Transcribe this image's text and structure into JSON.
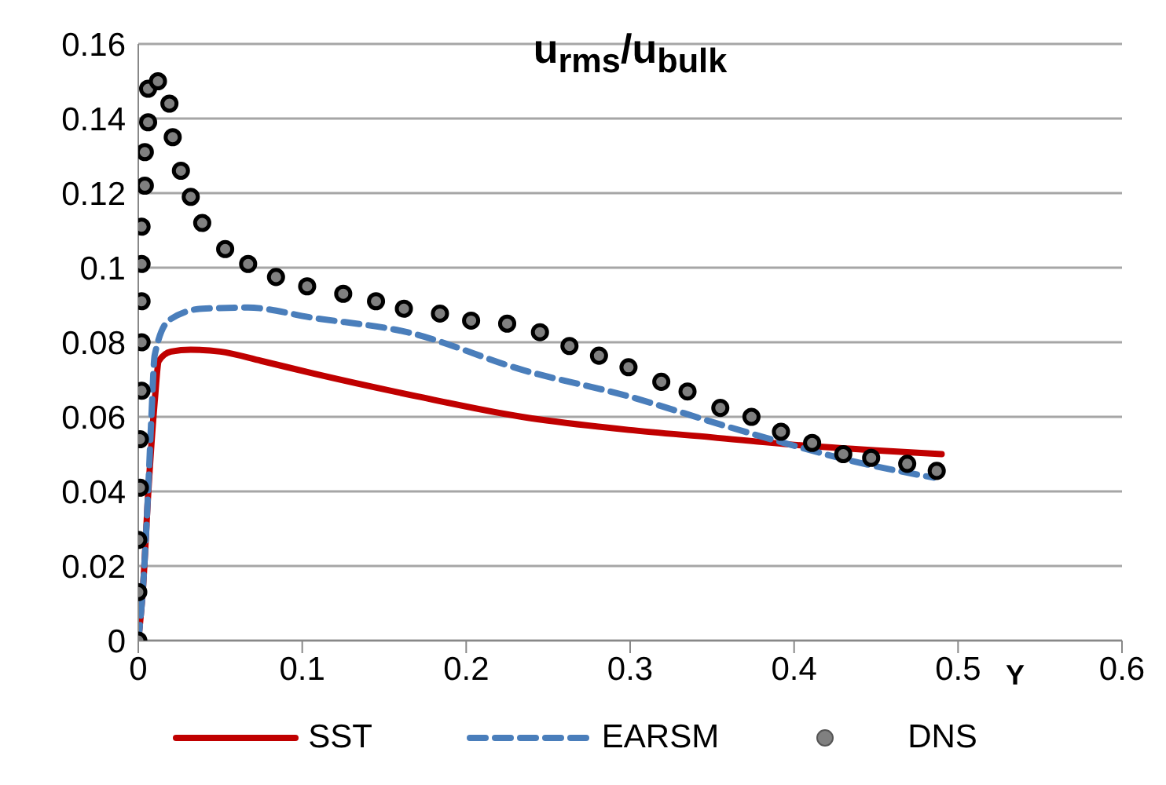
{
  "chart_data": {
    "type": "line",
    "title": "u$_{rms}$/u$_{bulk}$",
    "xlabel": "Y",
    "xlim": [
      0,
      0.6
    ],
    "xticks": [
      0,
      0.1,
      0.2,
      0.3,
      0.4,
      0.5,
      0.6
    ],
    "ylim": [
      0,
      0.16
    ],
    "yticks": [
      0,
      0.02,
      0.04,
      0.06,
      0.08,
      0.1,
      0.12,
      0.14,
      0.16
    ],
    "grid": "y",
    "legend": "bottom",
    "series": [
      {
        "name": "SST",
        "color": "#c00000",
        "line_style": "solid",
        "marker": "none",
        "x": [
          0,
          0.003,
          0.006,
          0.01,
          0.0125,
          0.02,
          0.032,
          0.05,
          0.075,
          0.106,
          0.17,
          0.234,
          0.299,
          0.35,
          0.4,
          0.45,
          0.49
        ],
        "values": [
          0,
          0.015,
          0.039,
          0.064,
          0.075,
          0.0775,
          0.078,
          0.0775,
          0.075,
          0.0717,
          0.0655,
          0.06,
          0.0565,
          0.0545,
          0.0525,
          0.051,
          0.05
        ]
      },
      {
        "name": "EARSM",
        "color": "#4a7ebb",
        "line_style": "dashed",
        "marker": "none",
        "x": [
          0,
          0.003,
          0.006,
          0.008,
          0.01,
          0.019,
          0.039,
          0.067,
          0.106,
          0.164,
          0.235,
          0.299,
          0.357,
          0.402,
          0.434,
          0.485
        ],
        "values": [
          0,
          0.015,
          0.04,
          0.06,
          0.0765,
          0.086,
          0.089,
          0.0893,
          0.0866,
          0.0827,
          0.0725,
          0.0655,
          0.0577,
          0.052,
          0.0483,
          0.0437
        ]
      },
      {
        "name": "DNS",
        "type": "scatter",
        "color": "#808080",
        "marker": "circle",
        "x": [
          0,
          0,
          0,
          0.001,
          0.001,
          0.002,
          0.002,
          0.002,
          0.002,
          0.002,
          0.004,
          0.004,
          0.006,
          0.006,
          0.012,
          0.019,
          0.021,
          0.026,
          0.032,
          0.039,
          0.053,
          0.067,
          0.084,
          0.103,
          0.125,
          0.145,
          0.162,
          0.184,
          0.203,
          0.225,
          0.245,
          0.263,
          0.281,
          0.299,
          0.319,
          0.335,
          0.355,
          0.374,
          0.392,
          0.411,
          0.43,
          0.447,
          0.469,
          0.487
        ],
        "values": [
          0,
          0.013,
          0.027,
          0.041,
          0.054,
          0.067,
          0.08,
          0.091,
          0.101,
          0.111,
          0.122,
          0.131,
          0.139,
          0.148,
          0.15,
          0.144,
          0.135,
          0.126,
          0.119,
          0.112,
          0.105,
          0.101,
          0.0975,
          0.095,
          0.093,
          0.091,
          0.089,
          0.0877,
          0.0858,
          0.085,
          0.0827,
          0.079,
          0.0764,
          0.0733,
          0.0694,
          0.0668,
          0.0624,
          0.06,
          0.056,
          0.053,
          0.05,
          0.049,
          0.0474,
          0.0455
        ]
      }
    ]
  }
}
